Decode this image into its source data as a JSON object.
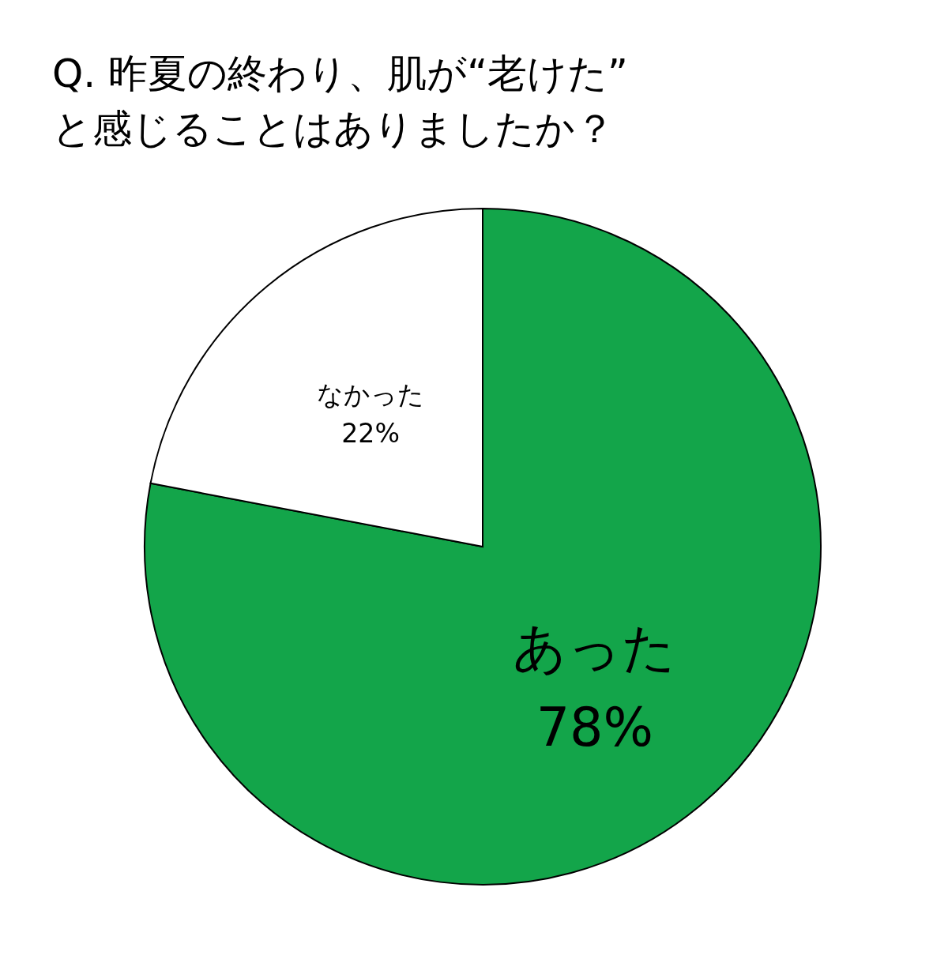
{
  "chart_data": {
    "type": "pie",
    "title": "Q. 昨夏の終わり、肌が“老けた”\nと感じることはありましたか？",
    "categories": [
      "あった",
      "なかった"
    ],
    "values": [
      78,
      22
    ],
    "colors": [
      "#13a54a",
      "#ffffff"
    ],
    "value_labels": [
      "78%",
      "22%"
    ]
  }
}
